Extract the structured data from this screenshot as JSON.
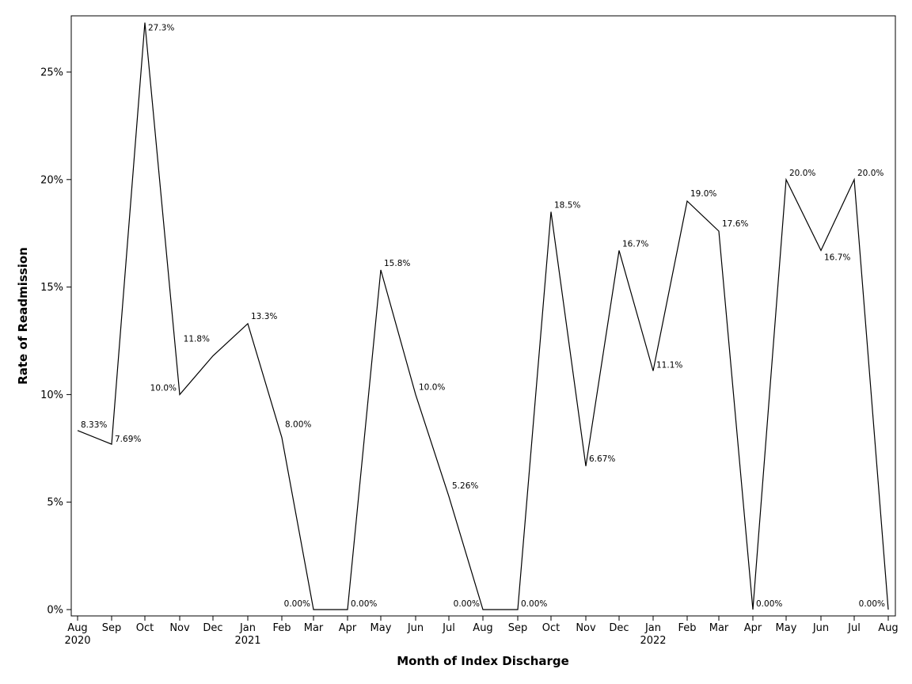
{
  "chart_data": {
    "type": "line",
    "title": "",
    "xlabel": "Month of Index Discharge",
    "ylabel": "Rate of Readmission",
    "ylim": [
      0,
      0.272
    ],
    "yticks": [
      "0%",
      "5%",
      "10%",
      "15%",
      "20%",
      "25%"
    ],
    "ytick_values": [
      0,
      0.05,
      0.1,
      0.15,
      0.2,
      0.25
    ],
    "grid": false,
    "legend": "none",
    "x": [
      "Aug 2020",
      "Sep 2020",
      "Oct 2020",
      "Nov 2020",
      "Dec 2020",
      "Jan 2021",
      "Feb 2021",
      "Mar 2021",
      "Apr 2021",
      "May 2021",
      "Jun 2021",
      "Jul 2021",
      "Aug 2021",
      "Sep 2021",
      "Oct 2021",
      "Nov 2021",
      "Dec 2021",
      "Jan 2022",
      "Feb 2022",
      "Mar 2022",
      "Apr 2022",
      "May 2022",
      "Jun 2022",
      "Jul 2022",
      "Aug 2022"
    ],
    "x_tick_month": [
      "Aug",
      "Sep",
      "Oct",
      "Nov",
      "Dec",
      "Jan",
      "Feb",
      "Mar",
      "Apr",
      "May",
      "Jun",
      "Jul",
      "Aug",
      "Sep",
      "Oct",
      "Nov",
      "Dec",
      "Jan",
      "Feb",
      "Mar",
      "Apr",
      "May",
      "Jun",
      "Jul",
      "Aug"
    ],
    "x_tick_year": [
      "2020",
      "",
      "",
      "",
      "",
      "2021",
      "",
      "",
      "",
      "",
      "",
      "",
      "",
      "",
      "",
      "",
      "",
      "2022",
      "",
      "",
      "",
      "",
      "",
      "",
      ""
    ],
    "series": [
      {
        "values": [
          0.0833,
          0.0769,
          0.273,
          0.1,
          0.118,
          0.133,
          0.08,
          0.0,
          0.0,
          0.158,
          0.1,
          0.0526,
          0.0,
          0.0,
          0.185,
          0.0667,
          0.167,
          0.111,
          0.19,
          0.176,
          0.0,
          0.2,
          0.167,
          0.2,
          0.0
        ],
        "labels": [
          "8.33%",
          "7.69%",
          "27.3%",
          "10.0%",
          "11.8%",
          "13.3%",
          "8.00%",
          "0.00%",
          "0.00%",
          "15.8%",
          "10.0%",
          "5.26%",
          "0.00%",
          "0.00%",
          "18.5%",
          "6.67%",
          "16.7%",
          "11.1%",
          "19.0%",
          "17.6%",
          "0.00%",
          "20.0%",
          "16.7%",
          "20.0%",
          "0.00%"
        ],
        "color": "#000000"
      }
    ]
  }
}
